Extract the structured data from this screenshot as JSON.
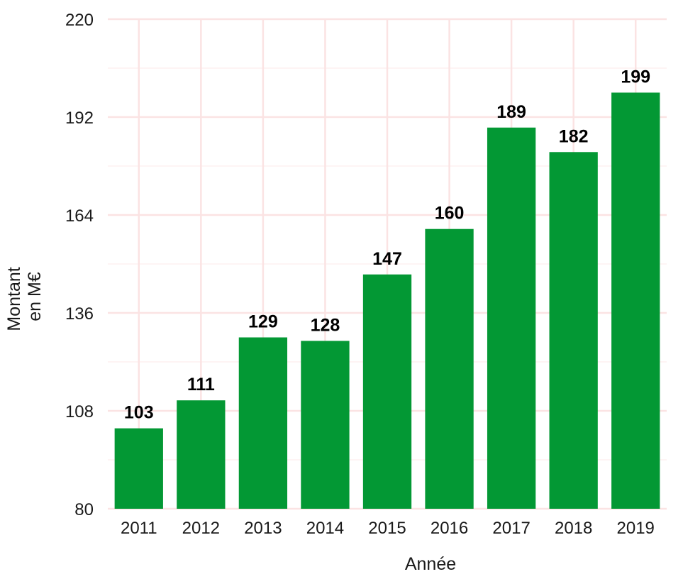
{
  "chart_data": {
    "type": "bar",
    "categories": [
      "2011",
      "2012",
      "2013",
      "2014",
      "2015",
      "2016",
      "2017",
      "2018",
      "2019"
    ],
    "values": [
      103,
      111,
      129,
      128,
      147,
      160,
      189,
      182,
      199
    ],
    "data_labels": [
      "103",
      "111",
      "129",
      "128",
      "147",
      "160",
      "189",
      "182",
      "199"
    ],
    "title": "",
    "xlabel": "Année",
    "ylabel_lines": [
      "Montant",
      "en M€"
    ],
    "ylim": [
      80,
      220
    ],
    "yticks": [
      80,
      108,
      136,
      164,
      192,
      220
    ],
    "ytick_labels": [
      "80",
      "108",
      "136",
      "164",
      "192",
      "220"
    ],
    "grid": true,
    "legend": "none",
    "colors": {
      "bar": "#039834",
      "grid_major": "#fbe3e3",
      "grid_minor": "#fdf1f1",
      "text": "#1a1a1a"
    }
  }
}
